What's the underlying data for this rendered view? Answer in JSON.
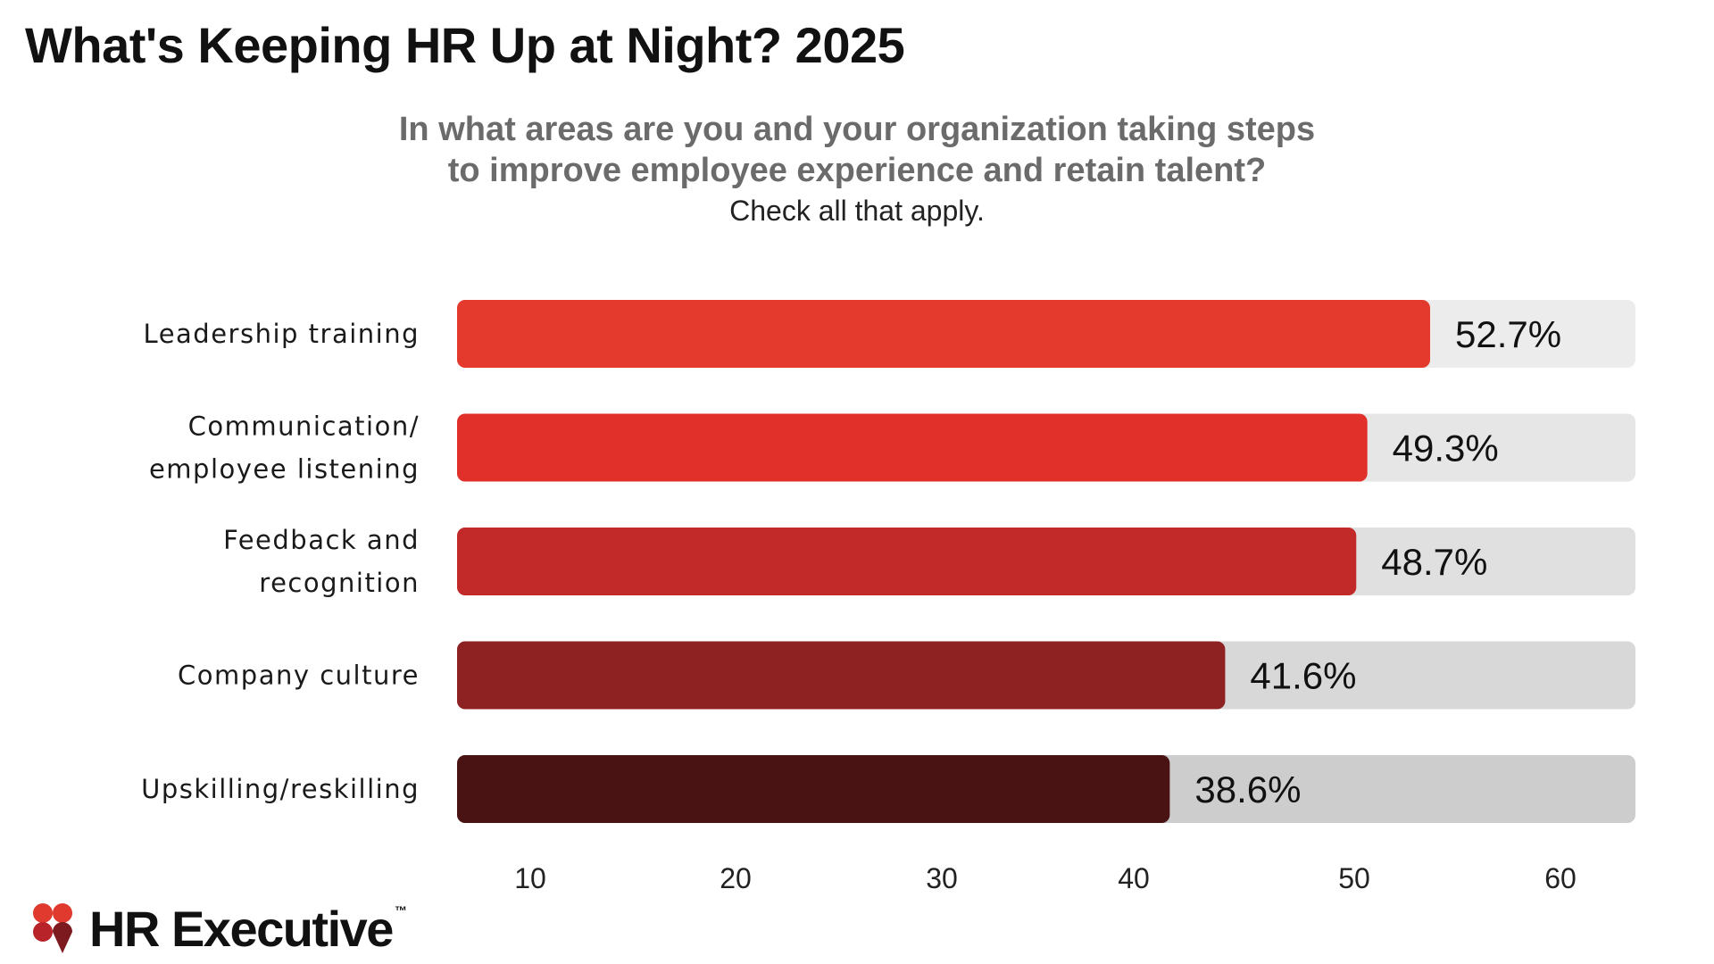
{
  "title": "What's Keeping HR Up at Night? 2025",
  "subtitle": {
    "line1": "In what areas are you and your organization taking steps",
    "line2": "to improve employee experience and retain talent?",
    "note": "Check all that apply."
  },
  "brand": {
    "name": "HR Executive",
    "trademark": "™",
    "logo_icon": "hr-executive-logo-icon",
    "logo_colors": [
      "#e03a2f",
      "#b8232a",
      "#7d1a1f"
    ]
  },
  "chart_data": {
    "type": "bar",
    "orientation": "horizontal",
    "categories": [
      [
        "Leadership training"
      ],
      [
        "Communication/",
        "employee listening"
      ],
      [
        "Feedback and",
        "recognition"
      ],
      [
        "Company culture"
      ],
      [
        "Upskilling/reskilling"
      ]
    ],
    "values": [
      52.7,
      49.3,
      48.7,
      41.6,
      38.6
    ],
    "value_labels": [
      "52.7%",
      "49.3%",
      "48.7%",
      "41.6%",
      "38.6%"
    ],
    "bar_colors": [
      "#e33a2d",
      "#e1302a",
      "#c12a28",
      "#8e2222",
      "#4a1313"
    ],
    "track_colors": [
      "#ececec",
      "#e6e6e6",
      "#e0e0e0",
      "#d8d8d8",
      "#cdcdcd"
    ],
    "x_ticks": [
      10,
      20,
      30,
      40,
      50,
      60
    ],
    "xlim": [
      0,
      60
    ],
    "grid": false,
    "legend": "none"
  }
}
